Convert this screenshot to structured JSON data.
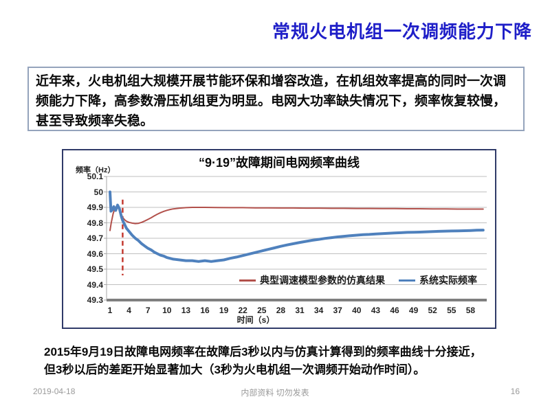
{
  "slide": {
    "title": "常规火电机组一次调频能力下降",
    "intro_text": "近年来，火电机组大规模开展节能环保和增容改造，在机组效率提高的同时一次调频能力下降，高参数滑压机组更为明显。电网大功率缺失情况下，频率恢复较慢，甚至导致频率失稳。",
    "note_line1": "2015年9月19日故障电网频率在故障后3秒以内与仿真计算得到的频率曲线十分接近，",
    "note_line2": "但3秒以后的差距开始显著加大（3秒为火电机组一次调频开始动作时间）。",
    "footer": {
      "date": "2019-04-18",
      "center": "内部资料 切勿发表",
      "page": "16"
    },
    "colors": {
      "title_blue": "#1f1fc8",
      "intro_border": "#94a3bc",
      "chart_border": "#2f3a68"
    }
  },
  "chart_data": {
    "type": "line",
    "title": "“9·19”故障期间电网频率曲线",
    "ylabel": "频率（Hz）",
    "xlabel": "时间（s）",
    "ylim": [
      49.3,
      50.1
    ],
    "yticks": [
      "50.1",
      "50",
      "49.9",
      "49.8",
      "49.7",
      "49.6",
      "49.5",
      "49.4",
      "49.3"
    ],
    "xticks": [
      1,
      4,
      7,
      10,
      13,
      16,
      19,
      22,
      25,
      28,
      31,
      34,
      37,
      40,
      43,
      46,
      49,
      52,
      55,
      58
    ],
    "grid": "horizontal",
    "legend_position": "inside-bottom",
    "annotation_vline": {
      "x": 3,
      "y_from": 49.46,
      "y_to": 49.95,
      "color": "#c3392f",
      "style": "dashed"
    },
    "axis_colors": {
      "grid": "#bfbfbf",
      "bottom_axis": "#7f7f7f",
      "left_axis": "#a6a6a6"
    },
    "series": [
      {
        "name": "典型调速模型参数的仿真结果",
        "color": "#b2504b",
        "width": 2,
        "points": [
          [
            1,
            49.75
          ],
          [
            1.2,
            49.8
          ],
          [
            1.5,
            49.86
          ],
          [
            1.8,
            49.895
          ],
          [
            2.1,
            49.91
          ],
          [
            2.4,
            49.9
          ],
          [
            2.7,
            49.865
          ],
          [
            3,
            49.835
          ],
          [
            3.3,
            49.82
          ],
          [
            3.6,
            49.81
          ],
          [
            4,
            49.803
          ],
          [
            4.5,
            49.798
          ],
          [
            5,
            49.795
          ],
          [
            5.5,
            49.797
          ],
          [
            6,
            49.803
          ],
          [
            6.5,
            49.812
          ],
          [
            7,
            49.822
          ],
          [
            7.5,
            49.833
          ],
          [
            8,
            49.845
          ],
          [
            8.5,
            49.856
          ],
          [
            9,
            49.866
          ],
          [
            9.5,
            49.874
          ],
          [
            10,
            49.881
          ],
          [
            10.5,
            49.886
          ],
          [
            11,
            49.89
          ],
          [
            12,
            49.895
          ],
          [
            13,
            49.898
          ],
          [
            14,
            49.9
          ],
          [
            15,
            49.9
          ],
          [
            16,
            49.9
          ],
          [
            18,
            49.899
          ],
          [
            20,
            49.898
          ],
          [
            22,
            49.898
          ],
          [
            24,
            49.897
          ],
          [
            26,
            49.897
          ],
          [
            28,
            49.896
          ],
          [
            30,
            49.896
          ],
          [
            32,
            49.895
          ],
          [
            34,
            49.895
          ],
          [
            36,
            49.894
          ],
          [
            38,
            49.894
          ],
          [
            40,
            49.893
          ],
          [
            42,
            49.893
          ],
          [
            44,
            49.892
          ],
          [
            46,
            49.892
          ],
          [
            48,
            49.891
          ],
          [
            50,
            49.891
          ],
          [
            52,
            49.89
          ],
          [
            54,
            49.89
          ],
          [
            56,
            49.889
          ],
          [
            58,
            49.889
          ],
          [
            60,
            49.889
          ]
        ]
      },
      {
        "name": "系统实际频率",
        "color": "#4f81bd",
        "width": 4,
        "points": [
          [
            1,
            50.0
          ],
          [
            1.15,
            49.875
          ],
          [
            1.4,
            49.885
          ],
          [
            1.6,
            49.905
          ],
          [
            1.9,
            49.88
          ],
          [
            2.2,
            49.915
          ],
          [
            2.5,
            49.89
          ],
          [
            2.8,
            49.84
          ],
          [
            3,
            49.815
          ],
          [
            3.3,
            49.79
          ],
          [
            3.6,
            49.765
          ],
          [
            4,
            49.745
          ],
          [
            4.5,
            49.72
          ],
          [
            5,
            49.7
          ],
          [
            5.5,
            49.685
          ],
          [
            6,
            49.665
          ],
          [
            6.5,
            49.65
          ],
          [
            7,
            49.635
          ],
          [
            7.5,
            49.625
          ],
          [
            8,
            49.61
          ],
          [
            8.5,
            49.6
          ],
          [
            9,
            49.59
          ],
          [
            9.5,
            49.585
          ],
          [
            10,
            49.575
          ],
          [
            11,
            49.565
          ],
          [
            12,
            49.56
          ],
          [
            13,
            49.555
          ],
          [
            14,
            49.555
          ],
          [
            15,
            49.55
          ],
          [
            16,
            49.555
          ],
          [
            17,
            49.55
          ],
          [
            18,
            49.555
          ],
          [
            19,
            49.56
          ],
          [
            20,
            49.57
          ],
          [
            21,
            49.578
          ],
          [
            22,
            49.588
          ],
          [
            23,
            49.598
          ],
          [
            24,
            49.608
          ],
          [
            25,
            49.618
          ],
          [
            26,
            49.628
          ],
          [
            27,
            49.638
          ],
          [
            28,
            49.648
          ],
          [
            29,
            49.657
          ],
          [
            30,
            49.665
          ],
          [
            31,
            49.673
          ],
          [
            32,
            49.68
          ],
          [
            33,
            49.687
          ],
          [
            34,
            49.693
          ],
          [
            35,
            49.699
          ],
          [
            36,
            49.704
          ],
          [
            37,
            49.709
          ],
          [
            38,
            49.713
          ],
          [
            39,
            49.717
          ],
          [
            40,
            49.72
          ],
          [
            41,
            49.723
          ],
          [
            42,
            49.725
          ],
          [
            43,
            49.728
          ],
          [
            44,
            49.73
          ],
          [
            45,
            49.732
          ],
          [
            46,
            49.734
          ],
          [
            47,
            49.736
          ],
          [
            48,
            49.738
          ],
          [
            49,
            49.739
          ],
          [
            50,
            49.74
          ],
          [
            51,
            49.742
          ],
          [
            52,
            49.743
          ],
          [
            53,
            49.745
          ],
          [
            54,
            49.746
          ],
          [
            55,
            49.747
          ],
          [
            56,
            49.748
          ],
          [
            57,
            49.749
          ],
          [
            58,
            49.75
          ],
          [
            59,
            49.752
          ],
          [
            60,
            49.753
          ]
        ]
      }
    ]
  }
}
